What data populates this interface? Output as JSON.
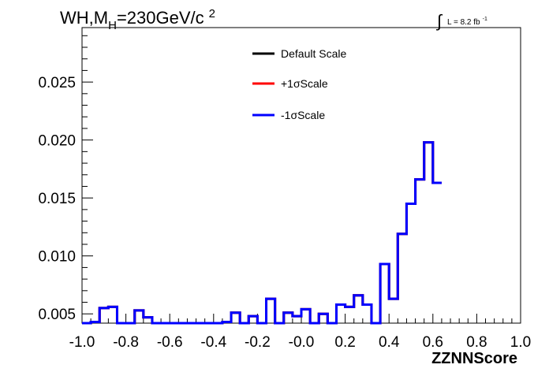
{
  "chart_data": {
    "type": "line",
    "title": {
      "prefix": "WH,M",
      "subscript": "H",
      "suffix": "=230GeV/c",
      "superscript": "2"
    },
    "lumi": {
      "integral": "∫",
      "text": "L = 8.2 fb",
      "superscript": "-1"
    },
    "xlabel": "ZZNNScore",
    "ylabel": "",
    "xlim": [
      -1.0,
      1.0
    ],
    "ylim": [
      0.0042,
      0.0297
    ],
    "x_ticks": [
      "-1.0",
      "-0.8",
      "-0.6",
      "-0.4",
      "-0.2",
      "-0.0",
      "0.2",
      "0.4",
      "0.6",
      "0.8",
      "1.0"
    ],
    "y_ticks": [
      "0.005",
      "0.010",
      "0.015",
      "0.020",
      "0.025"
    ],
    "bin_edges_start": -1.0,
    "bin_width": 0.04,
    "series": [
      {
        "name": "Default Scale",
        "color": "#000000",
        "values": [
          0.0042,
          0.0043,
          0.0055,
          0.0056,
          0.0042,
          0.0042,
          0.0053,
          0.0047,
          0.0042,
          0.0042,
          0.0042,
          0.0042,
          0.0042,
          0.0042,
          0.0042,
          0.0042,
          0.0043,
          0.0051,
          0.0042,
          0.0048,
          0.0042,
          0.0063,
          0.0042,
          0.0051,
          0.0048,
          0.0054,
          0.0042,
          0.005,
          0.0042,
          0.0058,
          0.0056,
          0.0066,
          0.0058,
          0.0042,
          0.0093,
          0.0063,
          0.0119,
          0.0145,
          0.0166,
          0.0198,
          0.0163
        ]
      },
      {
        "name": "+1σScale",
        "color": "#ff0000",
        "values": [
          0.0042,
          0.0043,
          0.0055,
          0.0056,
          0.0042,
          0.0042,
          0.0053,
          0.0047,
          0.0042,
          0.0042,
          0.0042,
          0.0042,
          0.0042,
          0.0042,
          0.0042,
          0.0042,
          0.0043,
          0.0051,
          0.0042,
          0.0048,
          0.0042,
          0.0063,
          0.0042,
          0.0051,
          0.0048,
          0.0054,
          0.0042,
          0.005,
          0.0042,
          0.0058,
          0.0056,
          0.0066,
          0.0058,
          0.0042,
          0.0093,
          0.0063,
          0.0119,
          0.0145,
          0.0166,
          0.0198,
          0.0163
        ]
      },
      {
        "name": "-1σScale",
        "color": "#0000ff",
        "values": [
          0.0042,
          0.0043,
          0.0055,
          0.0056,
          0.0042,
          0.0042,
          0.0053,
          0.0047,
          0.0042,
          0.0042,
          0.0042,
          0.0042,
          0.0042,
          0.0042,
          0.0042,
          0.0042,
          0.0043,
          0.0051,
          0.0042,
          0.0048,
          0.0042,
          0.0063,
          0.0042,
          0.0051,
          0.0048,
          0.0054,
          0.0042,
          0.005,
          0.0042,
          0.0058,
          0.0056,
          0.0066,
          0.0058,
          0.0042,
          0.0093,
          0.0063,
          0.0119,
          0.0145,
          0.0166,
          0.0198,
          0.0163
        ]
      }
    ],
    "legend": {
      "placement": "top-center",
      "entries": [
        "Default Scale",
        "+1σScale",
        "-1σScale"
      ]
    },
    "grid": false
  }
}
